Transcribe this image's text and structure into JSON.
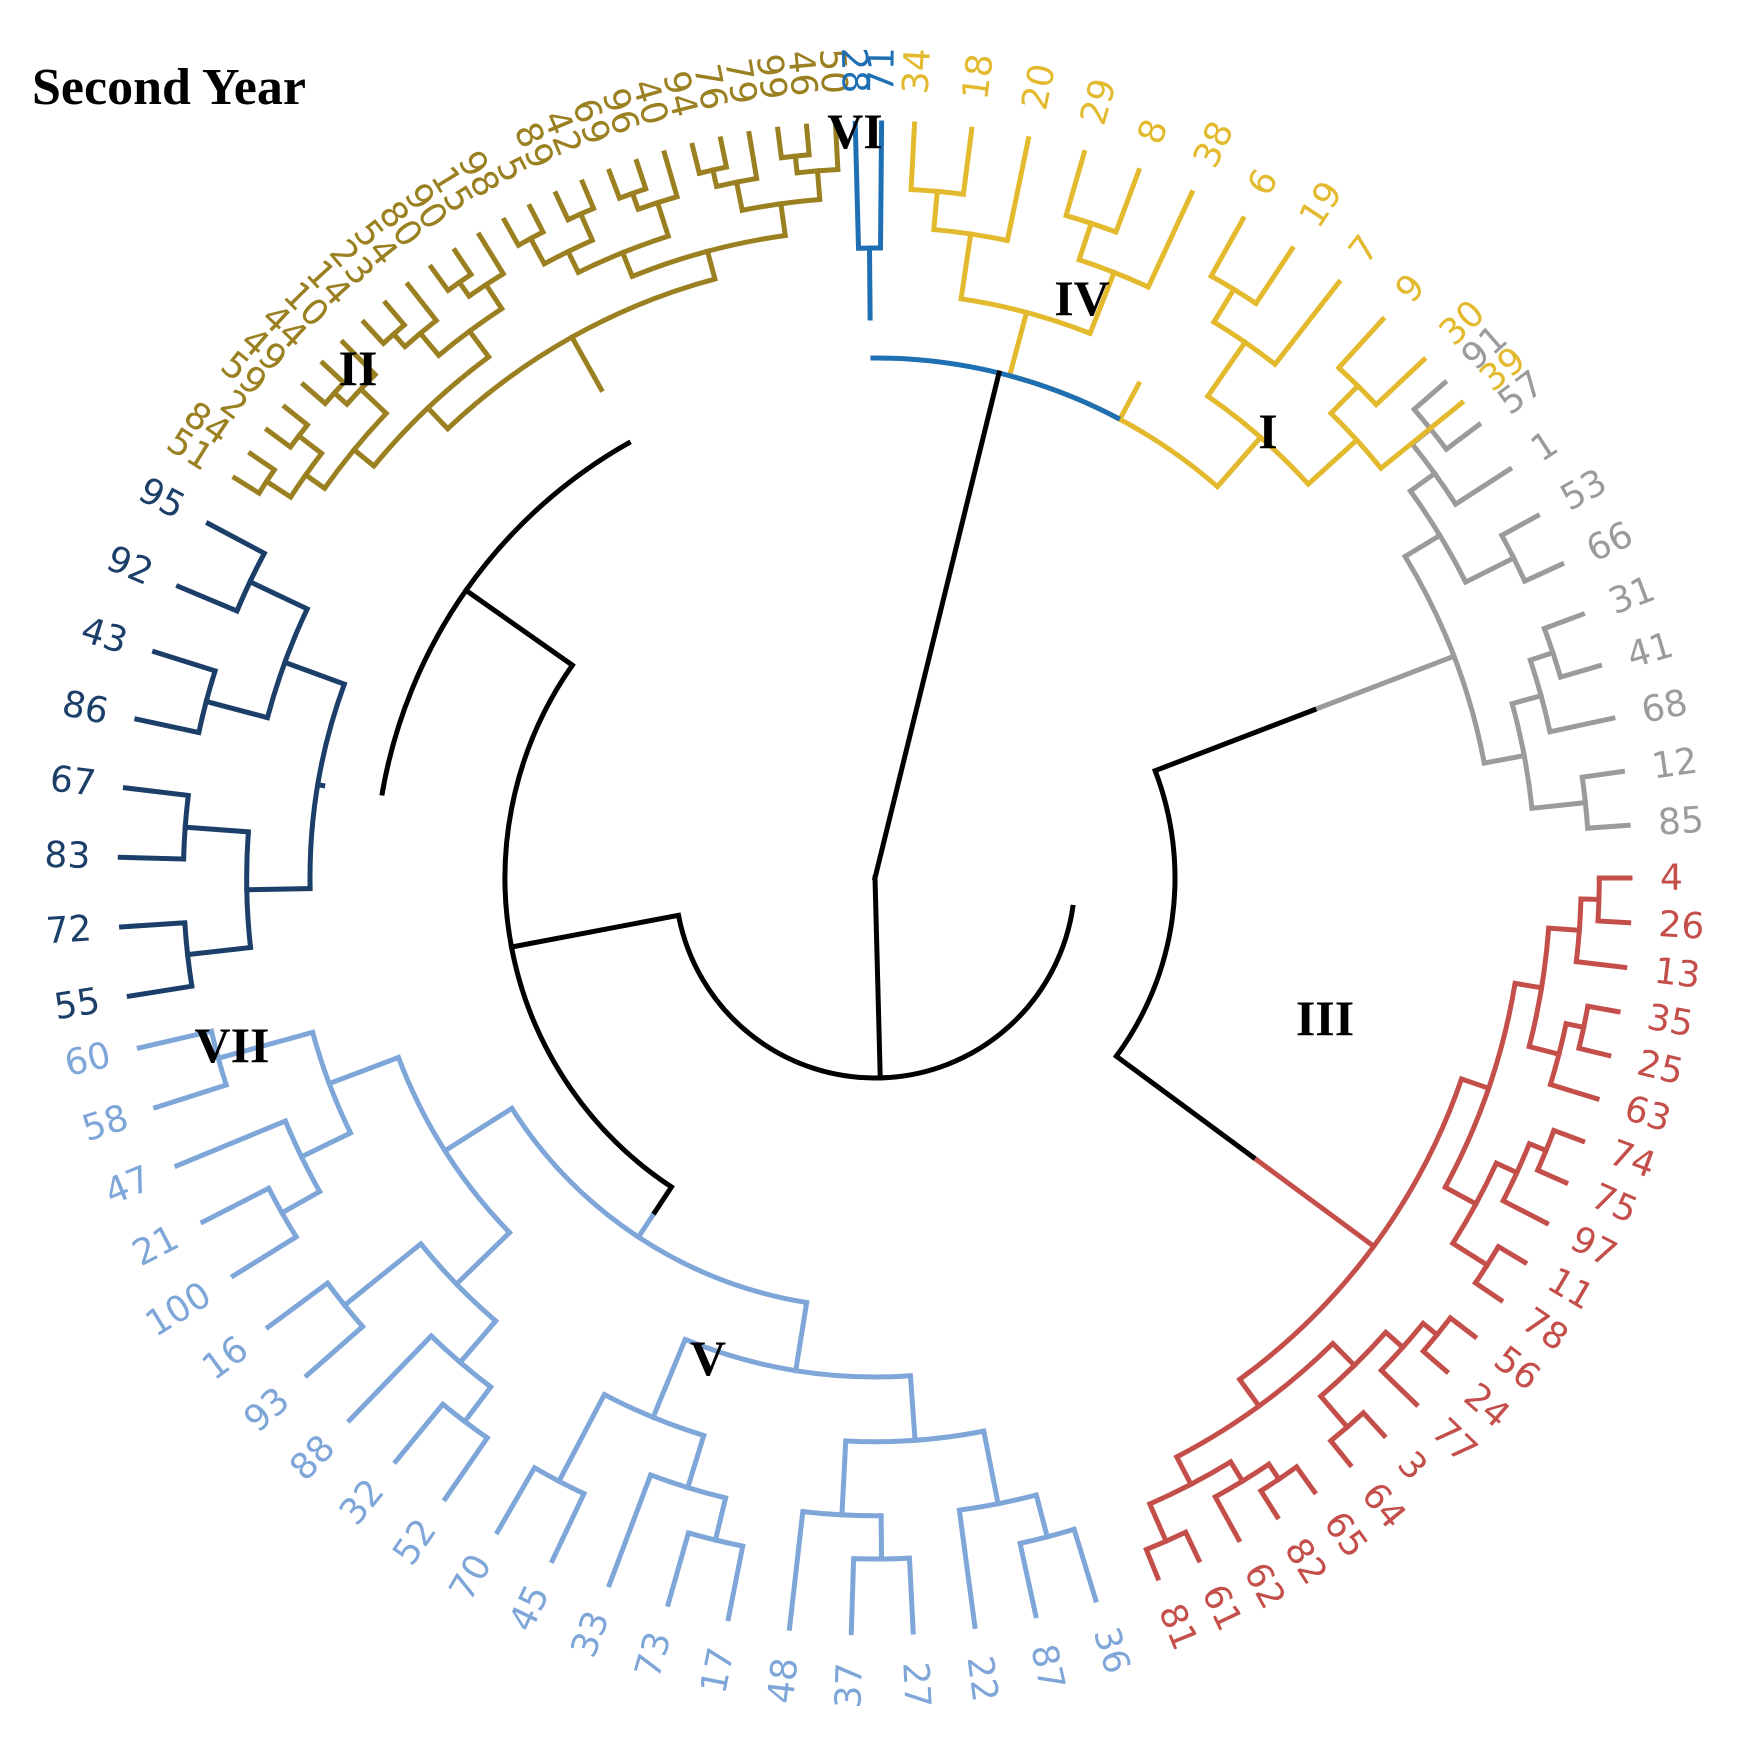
{
  "title": "Second Year",
  "colors": {
    "I": "#9b9b9b",
    "II": "#9a8020",
    "III": "#c44f4a",
    "IV": "#e3b92e",
    "V": "#7fa6d8",
    "VI": "#1f6fb3",
    "VII": "#1c3f6a",
    "backbone": "#000000"
  },
  "clusters": [
    {
      "name": "I",
      "leaves": [
        "91",
        "57",
        "1",
        "53",
        "66",
        "31",
        "41",
        "68",
        "12",
        "85"
      ]
    },
    {
      "name": "III",
      "leaves": [
        "4",
        "26",
        "13",
        "35",
        "25",
        "63",
        "74",
        "75",
        "97",
        "11",
        "78",
        "56",
        "24",
        "77",
        "3",
        "64",
        "65",
        "82",
        "62",
        "61",
        "81"
      ]
    },
    {
      "name": "V",
      "leaves": [
        "36",
        "87",
        "22",
        "27",
        "37",
        "48",
        "17",
        "73",
        "33",
        "45",
        "70",
        "52",
        "32",
        "88",
        "93",
        "16",
        "100",
        "21",
        "47",
        "58",
        "60"
      ]
    },
    {
      "name": "VII",
      "leaves": [
        "55",
        "72",
        "83",
        "67",
        "86",
        "43",
        "92",
        "95"
      ]
    },
    {
      "name": "II",
      "leaves": [
        "51",
        "84",
        "2",
        "59",
        "49",
        "44",
        "10",
        "14",
        "23",
        "54",
        "80",
        "90",
        "15",
        "98",
        "5",
        "89",
        "42",
        "69",
        "96",
        "40",
        "94",
        "76",
        "79",
        "99",
        "46",
        "50"
      ]
    },
    {
      "name": "VI",
      "leaves": [
        "28",
        "71"
      ]
    },
    {
      "name": "IV",
      "leaves": [
        "34",
        "18",
        "20",
        "29",
        "8",
        "38",
        "6",
        "19",
        "7",
        "9",
        "30",
        "39"
      ]
    }
  ]
}
